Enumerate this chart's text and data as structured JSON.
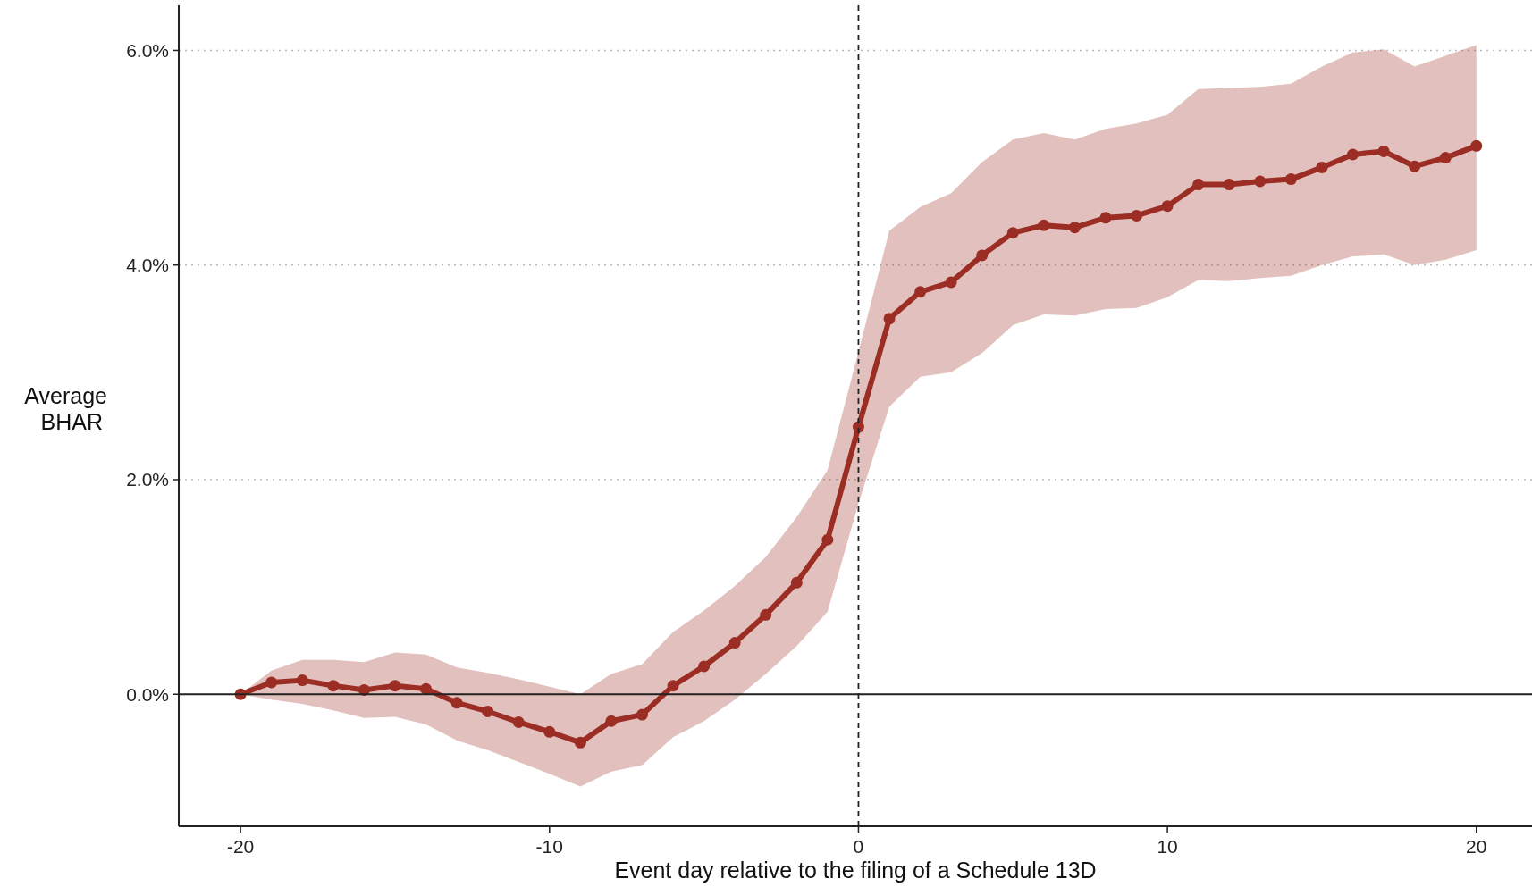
{
  "chart_data": {
    "type": "line",
    "xlabel": "Event day relative to the filing of a Schedule 13D",
    "ylabel": "Average\nBHAR",
    "x": [
      -20,
      -19,
      -18,
      -17,
      -16,
      -15,
      -14,
      -13,
      -12,
      -11,
      -10,
      -9,
      -8,
      -7,
      -6,
      -5,
      -4,
      -3,
      -2,
      -1,
      0,
      1,
      2,
      3,
      4,
      5,
      6,
      7,
      8,
      9,
      10,
      11,
      12,
      13,
      14,
      15,
      16,
      17,
      18,
      19,
      20
    ],
    "series": [
      {
        "color": "#9b2d25",
        "values": [
          0,
          0.11,
          0.13,
          0.08,
          0.04,
          0.08,
          0.05,
          -0.08,
          -0.16,
          -0.26,
          -0.35,
          -0.45,
          -0.25,
          -0.19,
          0.08,
          0.26,
          0.48,
          0.74,
          1.04,
          1.44,
          2.49,
          3.5,
          3.75,
          3.84,
          4.09,
          4.3,
          4.37,
          4.35,
          4.44,
          4.46,
          4.55,
          4.75,
          4.75,
          4.78,
          4.8,
          4.91,
          5.03,
          5.06,
          4.92,
          5,
          5.11
        ],
        "upper": [
          0,
          0.22,
          0.32,
          0.32,
          0.3,
          0.39,
          0.37,
          0.25,
          0.2,
          0.14,
          0.07,
          0,
          0.19,
          0.28,
          0.58,
          0.78,
          1.01,
          1.28,
          1.65,
          2.09,
          3.19,
          4.32,
          4.54,
          4.67,
          4.96,
          5.17,
          5.23,
          5.17,
          5.27,
          5.32,
          5.4,
          5.64,
          5.65,
          5.66,
          5.69,
          5.85,
          5.98,
          6.01,
          5.85,
          5.95,
          6.05
        ],
        "lower": [
          0,
          -0.05,
          -0.09,
          -0.15,
          -0.22,
          -0.21,
          -0.28,
          -0.43,
          -0.52,
          -0.63,
          -0.74,
          -0.86,
          -0.72,
          -0.66,
          -0.4,
          -0.25,
          -0.05,
          0.19,
          0.45,
          0.77,
          1.78,
          2.68,
          2.96,
          3,
          3.18,
          3.44,
          3.54,
          3.53,
          3.59,
          3.6,
          3.7,
          3.86,
          3.85,
          3.88,
          3.9,
          4,
          4.08,
          4.1,
          4,
          4.05,
          4.14
        ]
      }
    ],
    "xlim": [
      -22,
      21.8
    ],
    "xticks": [
      -20,
      -10,
      0,
      10,
      20
    ],
    "ylim": [
      -1.23,
      6.42
    ],
    "yticks": [
      {
        "value": 0,
        "label": "0.0%"
      },
      {
        "value": 2,
        "label": "2.0%"
      },
      {
        "value": 4,
        "label": "4.0%"
      },
      {
        "value": 6,
        "label": "6.0%"
      }
    ],
    "grid": "y",
    "marker": "circle",
    "line_style": "solid",
    "ref_lines": [
      {
        "axis": "y",
        "value": 0,
        "color": "#222222",
        "line_style": "solid"
      },
      {
        "axis": "x",
        "value": 0,
        "color": "#222222",
        "line_style": "dashed"
      }
    ]
  }
}
